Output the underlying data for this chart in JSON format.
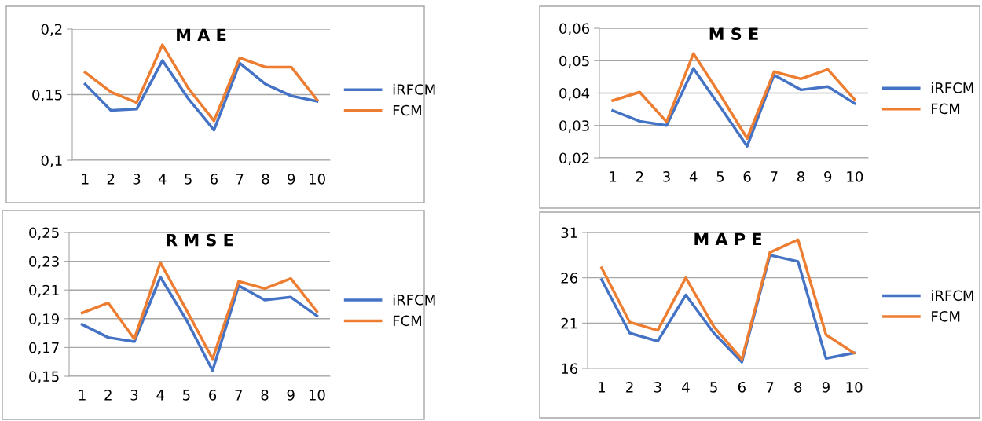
{
  "chart_data": [
    {
      "type": "line",
      "title": "M A E",
      "categories": [
        "1",
        "2",
        "3",
        "4",
        "5",
        "6",
        "7",
        "8",
        "9",
        "10"
      ],
      "ylim": [
        0.1,
        0.2
      ],
      "yticks": [
        {
          "value": 0.1,
          "label": "0,1"
        },
        {
          "value": 0.15,
          "label": "0,15"
        },
        {
          "value": 0.2,
          "label": "0,2"
        }
      ],
      "grid": "y",
      "legend": "right",
      "series": [
        {
          "name": "iRFCM",
          "color": "#4472c4",
          "values": [
            0.158,
            0.138,
            0.139,
            0.176,
            0.147,
            0.123,
            0.174,
            0.158,
            0.149,
            0.145
          ]
        },
        {
          "name": "FCM",
          "color": "#ed7d31",
          "values": [
            0.167,
            0.152,
            0.144,
            0.188,
            0.155,
            0.13,
            0.178,
            0.171,
            0.171,
            0.146
          ]
        }
      ]
    },
    {
      "type": "line",
      "title": "M S E",
      "categories": [
        "1",
        "2",
        "3",
        "4",
        "5",
        "6",
        "7",
        "8",
        "9",
        "10"
      ],
      "ylim": [
        0.02,
        0.06
      ],
      "yticks": [
        {
          "value": 0.02,
          "label": "0,02"
        },
        {
          "value": 0.03,
          "label": "0,03"
        },
        {
          "value": 0.04,
          "label": "0,04"
        },
        {
          "value": 0.05,
          "label": "0,05"
        },
        {
          "value": 0.06,
          "label": "0,06"
        }
      ],
      "grid": "y",
      "legend": "right",
      "series": [
        {
          "name": "iRFCM",
          "color": "#4472c4",
          "values": [
            0.0346,
            0.0313,
            0.03,
            0.0476,
            0.0357,
            0.0236,
            0.0456,
            0.041,
            0.042,
            0.0368
          ]
        },
        {
          "name": "FCM",
          "color": "#ed7d31",
          "values": [
            0.0377,
            0.0403,
            0.0311,
            0.0522,
            0.0394,
            0.026,
            0.0466,
            0.0444,
            0.0473,
            0.038
          ]
        }
      ]
    },
    {
      "type": "line",
      "title": "R M S E",
      "categories": [
        "1",
        "2",
        "3",
        "4",
        "5",
        "6",
        "7",
        "8",
        "9",
        "10"
      ],
      "ylim": [
        0.15,
        0.25
      ],
      "yticks": [
        {
          "value": 0.15,
          "label": "0,15"
        },
        {
          "value": 0.17,
          "label": "0,17"
        },
        {
          "value": 0.19,
          "label": "0,19"
        },
        {
          "value": 0.21,
          "label": "0,21"
        },
        {
          "value": 0.23,
          "label": "0,23"
        },
        {
          "value": 0.25,
          "label": "0,25"
        }
      ],
      "grid": "y",
      "legend": "right",
      "series": [
        {
          "name": "iRFCM",
          "color": "#4472c4",
          "values": [
            0.186,
            0.177,
            0.174,
            0.219,
            0.189,
            0.154,
            0.213,
            0.203,
            0.205,
            0.192
          ]
        },
        {
          "name": "FCM",
          "color": "#ed7d31",
          "values": [
            0.194,
            0.201,
            0.176,
            0.229,
            0.196,
            0.162,
            0.216,
            0.211,
            0.218,
            0.195
          ]
        }
      ]
    },
    {
      "type": "line",
      "title": "M A P E",
      "categories": [
        "1",
        "2",
        "3",
        "4",
        "5",
        "6",
        "7",
        "8",
        "9",
        "10"
      ],
      "ylim": [
        16,
        31
      ],
      "yticks": [
        16,
        21,
        26,
        31
      ],
      "grid": "y",
      "legend": "right",
      "series": [
        {
          "name": "iRFCM",
          "color": "#4472c4",
          "values": [
            25.8,
            19.9,
            19.0,
            24.1,
            19.9,
            16.7,
            28.5,
            27.8,
            17.1,
            17.7
          ]
        },
        {
          "name": "FCM",
          "color": "#ed7d31",
          "values": [
            27.1,
            21.1,
            20.2,
            26.0,
            20.6,
            17.0,
            28.8,
            30.2,
            19.7,
            17.7
          ]
        }
      ]
    }
  ]
}
